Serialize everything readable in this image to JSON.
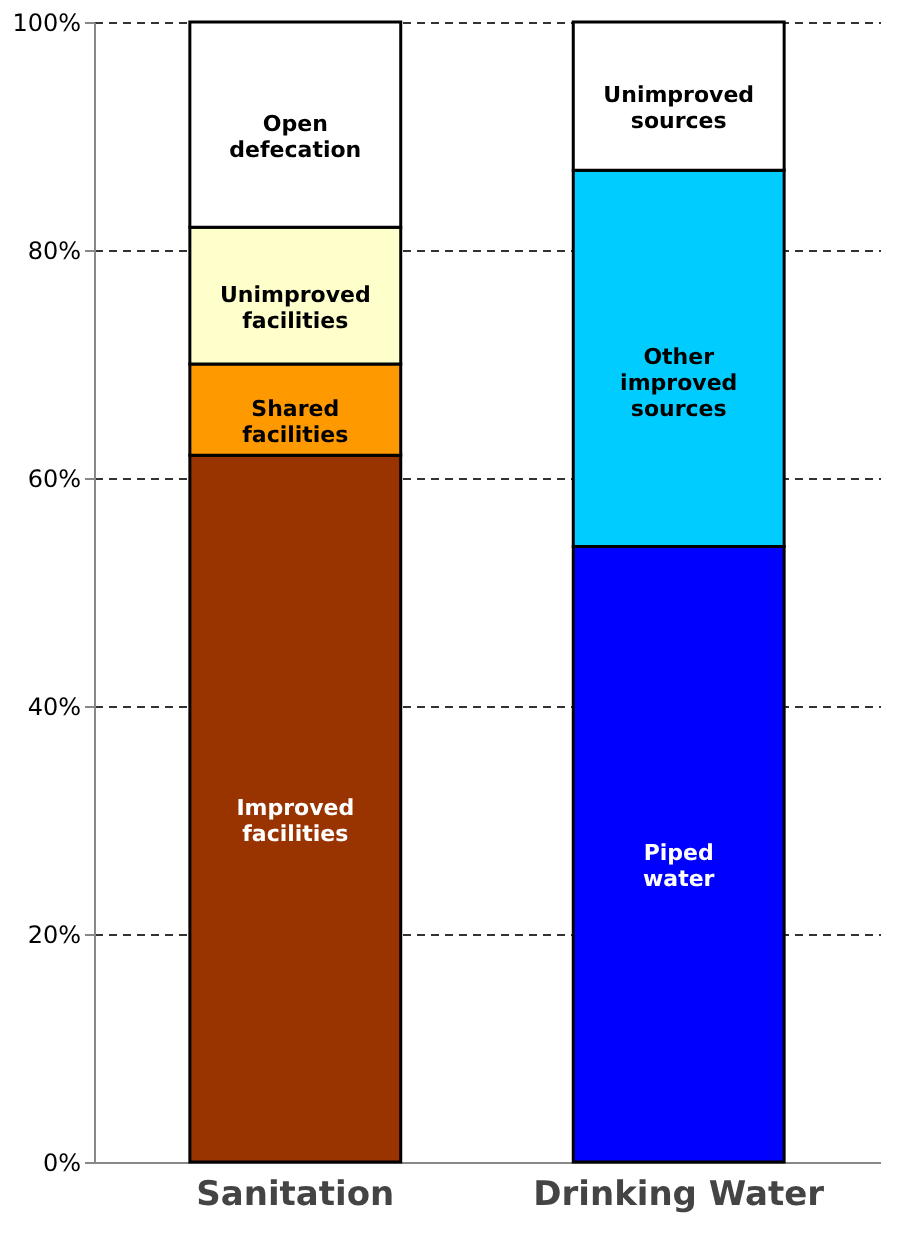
{
  "chart_data": {
    "type": "bar",
    "stacked": true,
    "categories": [
      "Sanitation",
      "Drinking Water"
    ],
    "series": [
      {
        "name": "Improved facilities",
        "color": "#993300",
        "values": [
          62,
          null
        ]
      },
      {
        "name": "Shared facilities",
        "color": "#ff9900",
        "values": [
          8,
          null
        ]
      },
      {
        "name": "Unimproved facilities",
        "color": "#ffffcc",
        "values": [
          12,
          null
        ]
      },
      {
        "name": "Open defecation",
        "color": "#ffffff",
        "values": [
          18,
          null
        ]
      },
      {
        "name": "Piped water",
        "color": "#0000ff",
        "values": [
          null,
          54
        ]
      },
      {
        "name": "Other improved sources",
        "color": "#00ccff",
        "values": [
          null,
          33
        ]
      },
      {
        "name": "Unimproved sources",
        "color": "#ffffff",
        "values": [
          null,
          13
        ]
      }
    ],
    "ylim": [
      0,
      100
    ],
    "yticks": [
      {
        "value": 0,
        "label": "0%"
      },
      {
        "value": 20,
        "label": "20%"
      },
      {
        "value": 40,
        "label": "40%"
      },
      {
        "value": 60,
        "label": "60%"
      },
      {
        "value": 80,
        "label": "80%"
      },
      {
        "value": 100,
        "label": "100%"
      }
    ],
    "grid": "y"
  }
}
